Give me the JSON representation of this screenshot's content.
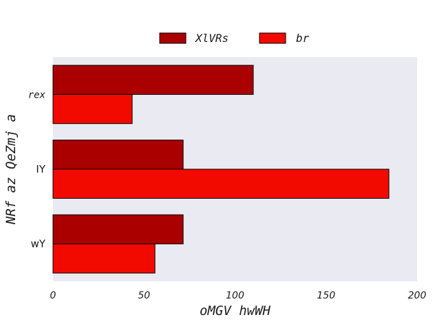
{
  "chart_data": {
    "type": "bar",
    "orientation": "horizontal",
    "categories": [
      "rex",
      "IY",
      "wY"
    ],
    "series": [
      {
        "name": "XlVRs",
        "values": [
          110,
          71.5,
          71.5
        ],
        "color": "#aa0000"
      },
      {
        "name": "br",
        "values": [
          43.5,
          184.5,
          56
        ],
        "color": "#f20a00"
      }
    ],
    "xlabel": "oMGV hwWH",
    "ylabel": "NRf az QeZmj a",
    "xlim": [
      0,
      200
    ],
    "xticks": [
      "0",
      "50",
      "100",
      "150",
      "200"
    ],
    "xtick_values": [
      0,
      50,
      100,
      150,
      200
    ],
    "grid": false,
    "legend": "top-center",
    "plot_background": "#eaeaf2",
    "bar_edge_color": "#000000"
  }
}
